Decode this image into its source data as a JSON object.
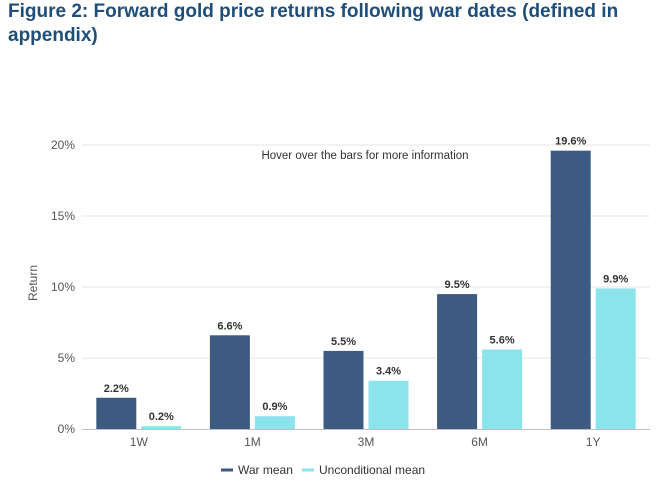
{
  "title": "Figure 2: Forward gold price returns following war dates (defined in appendix)",
  "hint": "Hover over the bars for more information",
  "colors": {
    "war": "#3d5a80",
    "unconditional": "#8be3ec",
    "grid": "#e6e6e6",
    "axis": "#bfbfbf"
  },
  "chart_data": {
    "type": "bar",
    "categories": [
      "1W",
      "1M",
      "3M",
      "6M",
      "1Y"
    ],
    "series": [
      {
        "name": "War mean",
        "values": [
          2.2,
          6.6,
          5.5,
          9.5,
          19.6
        ],
        "labels": [
          "2.2%",
          "6.6%",
          "5.5%",
          "9.5%",
          "19.6%"
        ]
      },
      {
        "name": "Unconditional mean",
        "values": [
          0.2,
          0.9,
          3.4,
          5.6,
          9.9
        ],
        "labels": [
          "0.2%",
          "0.9%",
          "3.4%",
          "5.6%",
          "9.9%"
        ]
      }
    ],
    "ylabel": "Return",
    "xlabel": "",
    "ylim": [
      0,
      20
    ],
    "yticks": [
      0,
      5,
      10,
      15,
      20
    ],
    "ytick_labels": [
      "0%",
      "5%",
      "10%",
      "15%",
      "20%"
    ],
    "grid": true,
    "legend": "bottom-center"
  }
}
